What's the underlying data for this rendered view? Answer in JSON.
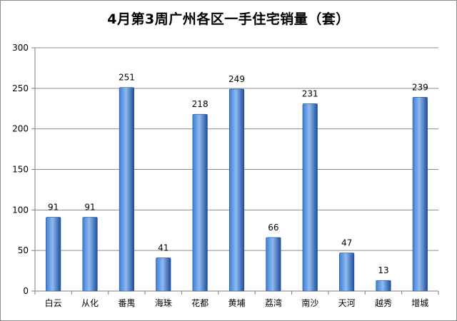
{
  "chart_data": {
    "type": "bar",
    "title": "4月第3周广州各区一手住宅销量（套）",
    "xlabel": "",
    "ylabel": "",
    "ylim": [
      0,
      300
    ],
    "yticks": [
      0,
      50,
      100,
      150,
      200,
      250,
      300
    ],
    "grid": true,
    "legend": "none",
    "categories": [
      "白云",
      "从化",
      "番禺",
      "海珠",
      "花都",
      "黄埔",
      "荔湾",
      "南沙",
      "天河",
      "越秀",
      "增城"
    ],
    "values": [
      91,
      91,
      251,
      41,
      218,
      249,
      66,
      231,
      47,
      13,
      239
    ],
    "colors": {
      "bar_dark": "#1f4e9a",
      "bar_mid": "#3d7fd6",
      "bar_light": "#8fbaf0",
      "grid": "#8c8c8c",
      "axis": "#7f7f7f"
    }
  }
}
